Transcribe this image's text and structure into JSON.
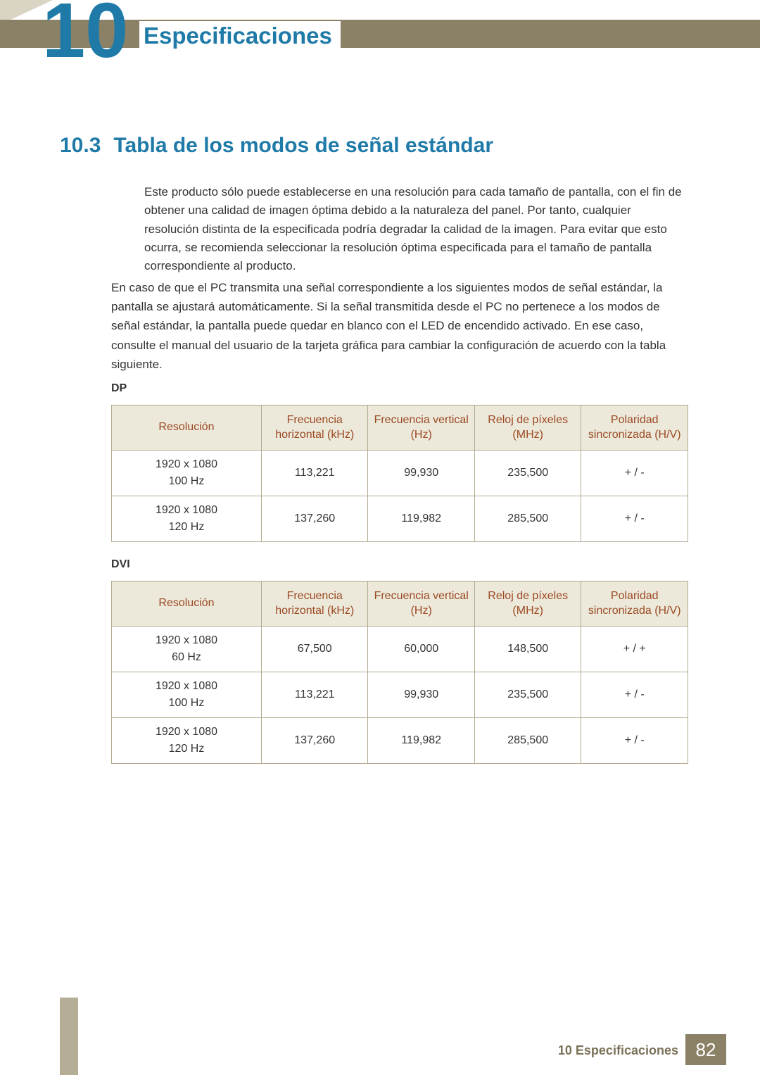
{
  "chapter_number": "10",
  "chapter_title": "Especificaciones",
  "section": {
    "number": "10.3",
    "title": "Tabla de los modos de señal estándar"
  },
  "note_text": "Este producto sólo puede establecerse en una resolución para cada tamaño de pantalla, con el fin de obtener una calidad de imagen óptima debido a la naturaleza del panel. Por tanto, cualquier resolución distinta de la especificada podría degradar la calidad de la imagen. Para evitar que esto ocurra, se recomienda seleccionar la resolución óptima especificada para el tamaño de pantalla correspondiente al producto.",
  "body_text": "En caso de que el PC transmita una señal correspondiente a los siguientes modos de señal estándar, la pantalla se ajustará automáticamente. Si la señal transmitida desde el PC no pertenece a los modos de señal estándar, la pantalla puede quedar en blanco con el LED de encendido activado. En ese caso, consulte el manual del usuario de la tarjeta gráfica para cambiar la configuración de acuerdo con la tabla siguiente.",
  "headers": {
    "resolution": "Resolución",
    "hfreq": "Frecuencia horizontal (kHz)",
    "vfreq": "Frecuencia vertical (Hz)",
    "pclock": "Reloj de píxeles (MHz)",
    "polarity": "Polaridad sincronizada (H/V)"
  },
  "dp": {
    "label": "DP",
    "rows": [
      {
        "res_l1": "1920 x 1080",
        "res_l2": "100 Hz",
        "h": "113,221",
        "v": "99,930",
        "p": "235,500",
        "pol": "+ / -"
      },
      {
        "res_l1": "1920 x 1080",
        "res_l2": "120 Hz",
        "h": "137,260",
        "v": "119,982",
        "p": "285,500",
        "pol": "+ / -"
      }
    ]
  },
  "dvi": {
    "label": "DVI",
    "rows": [
      {
        "res_l1": "1920 x 1080",
        "res_l2": "60 Hz",
        "h": "67,500",
        "v": "60,000",
        "p": "148,500",
        "pol": "+ / +"
      },
      {
        "res_l1": "1920 x 1080",
        "res_l2": "100 Hz",
        "h": "113,221",
        "v": "99,930",
        "p": "235,500",
        "pol": "+ / -"
      },
      {
        "res_l1": "1920 x 1080",
        "res_l2": "120 Hz",
        "h": "137,260",
        "v": "119,982",
        "p": "285,500",
        "pol": "+ / -"
      }
    ]
  },
  "footer": {
    "label": "10 Especificaciones",
    "page": "82"
  },
  "style": {
    "primary_color": "#1f7aa8",
    "header_bg": "#ece8da",
    "header_text": "#9b4a23",
    "border_color": "#b3aa8f",
    "bar_color": "#8a8166"
  }
}
